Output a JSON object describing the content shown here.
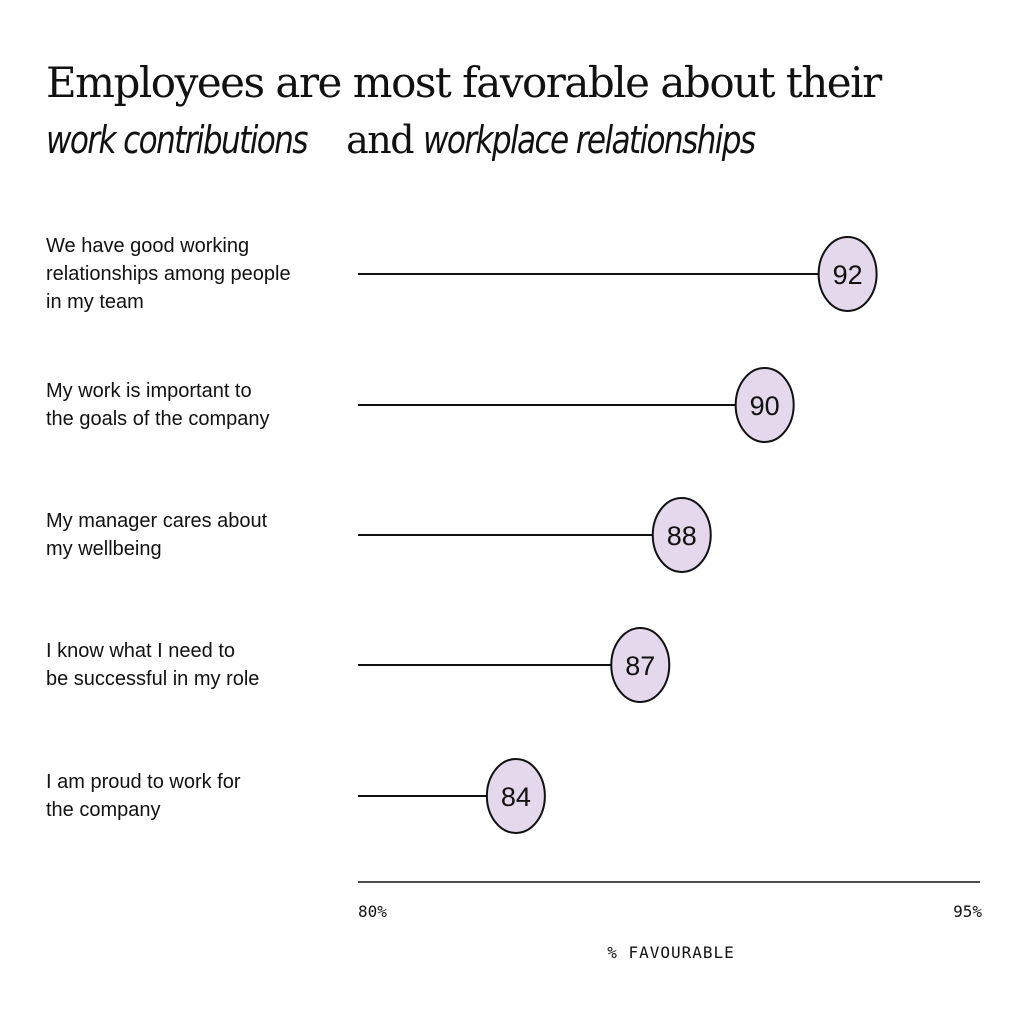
{
  "title": {
    "line1": "Employees are most favorable about their",
    "line2_part1": "work contributions",
    "line2_part2": "and",
    "line2_part3": "workplace relationships"
  },
  "colors": {
    "bubble_fill": "#e4d8ec",
    "line": "#111111",
    "background": "#ffffff"
  },
  "chart_data": {
    "type": "lollipop",
    "categories": [
      [
        "We have good working",
        "relationships among people",
        "in my team"
      ],
      [
        "My work is important to",
        "the goals of the company"
      ],
      [
        "My manager cares about",
        "my wellbeing"
      ],
      [
        "I know what I need to",
        "be successful in my role"
      ],
      [
        "I am proud to work for",
        "the company"
      ]
    ],
    "values": [
      92,
      90,
      88,
      87,
      84
    ],
    "xlim": [
      80,
      95
    ],
    "xticks": [
      "80%",
      "95%"
    ],
    "xlabel": "% FAVOURABLE",
    "grid": false,
    "legend": "none"
  }
}
